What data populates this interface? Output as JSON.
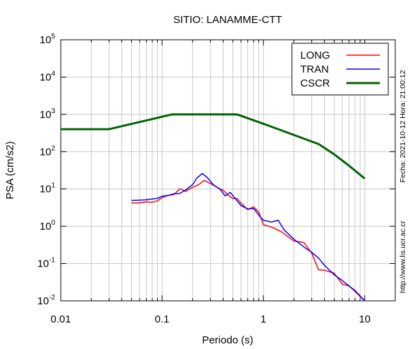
{
  "chart_data": {
    "type": "line",
    "title": "SITIO: LANAMME-CTT",
    "xlabel": "Periodo (s)",
    "ylabel": "PSA (cm/s2)",
    "x_scale": "log",
    "y_scale": "log",
    "xlim": [
      0.01,
      20
    ],
    "ylim": [
      0.01,
      100000
    ],
    "x_ticks": [
      {
        "value": 0.01,
        "label": "0.01"
      },
      {
        "value": 0.1,
        "label": "0.1"
      },
      {
        "value": 1,
        "label": "1"
      },
      {
        "value": 10,
        "label": "10"
      }
    ],
    "y_ticks": [
      {
        "value": 0.01,
        "base": "10",
        "exp": "-2"
      },
      {
        "value": 0.1,
        "base": "10",
        "exp": "-1"
      },
      {
        "value": 1,
        "base": "10",
        "exp": "0"
      },
      {
        "value": 10,
        "base": "10",
        "exp": "1"
      },
      {
        "value": 100,
        "base": "10",
        "exp": "2"
      },
      {
        "value": 1000,
        "base": "10",
        "exp": "3"
      },
      {
        "value": 10000,
        "base": "10",
        "exp": "4"
      },
      {
        "value": 100000,
        "base": "10",
        "exp": "5"
      }
    ],
    "grid": true,
    "legend_position": "top-right",
    "series": [
      {
        "name": "LONG",
        "color": "#ff0000",
        "width": 1.5,
        "points": [
          [
            0.05,
            4.2
          ],
          [
            0.06,
            4.2
          ],
          [
            0.07,
            4.5
          ],
          [
            0.08,
            4.4
          ],
          [
            0.09,
            4.8
          ],
          [
            0.1,
            5.8
          ],
          [
            0.115,
            6.8
          ],
          [
            0.13,
            7.0
          ],
          [
            0.15,
            10.2
          ],
          [
            0.17,
            8.6
          ],
          [
            0.2,
            11.0
          ],
          [
            0.23,
            13.0
          ],
          [
            0.26,
            17.0
          ],
          [
            0.3,
            14.0
          ],
          [
            0.35,
            11.0
          ],
          [
            0.4,
            9.2
          ],
          [
            0.45,
            6.8
          ],
          [
            0.5,
            5.5
          ],
          [
            0.55,
            5.6
          ],
          [
            0.6,
            4.2
          ],
          [
            0.7,
            2.8
          ],
          [
            0.8,
            3.3
          ],
          [
            0.9,
            2.4
          ],
          [
            1.0,
            1.1
          ],
          [
            1.2,
            0.95
          ],
          [
            1.5,
            0.72
          ],
          [
            2.0,
            0.4
          ],
          [
            2.5,
            0.37
          ],
          [
            3.0,
            0.19
          ],
          [
            3.5,
            0.068
          ],
          [
            4.0,
            0.066
          ],
          [
            5.0,
            0.055
          ],
          [
            6.0,
            0.028
          ],
          [
            7.0,
            0.025
          ],
          [
            8.0,
            0.018
          ],
          [
            9.0,
            0.013
          ],
          [
            10.0,
            0.01
          ]
        ]
      },
      {
        "name": "TRAN",
        "color": "#0000ff",
        "width": 1.5,
        "points": [
          [
            0.05,
            4.9
          ],
          [
            0.06,
            5.0
          ],
          [
            0.07,
            5.1
          ],
          [
            0.08,
            5.4
          ],
          [
            0.09,
            5.6
          ],
          [
            0.1,
            6.4
          ],
          [
            0.115,
            6.7
          ],
          [
            0.13,
            7.4
          ],
          [
            0.15,
            7.6
          ],
          [
            0.17,
            9.3
          ],
          [
            0.2,
            13.0
          ],
          [
            0.22,
            19.5
          ],
          [
            0.25,
            26.0
          ],
          [
            0.28,
            20.0
          ],
          [
            0.32,
            13.0
          ],
          [
            0.37,
            10.0
          ],
          [
            0.42,
            6.5
          ],
          [
            0.47,
            8.1
          ],
          [
            0.52,
            5.8
          ],
          [
            0.6,
            3.6
          ],
          [
            0.7,
            2.9
          ],
          [
            0.8,
            3.0
          ],
          [
            0.9,
            2.0
          ],
          [
            1.0,
            1.45
          ],
          [
            1.2,
            1.3
          ],
          [
            1.4,
            1.45
          ],
          [
            1.6,
            0.8
          ],
          [
            2.0,
            0.45
          ],
          [
            2.5,
            0.28
          ],
          [
            3.0,
            0.2
          ],
          [
            3.5,
            0.14
          ],
          [
            4.0,
            0.09
          ],
          [
            5.0,
            0.05
          ],
          [
            6.0,
            0.035
          ],
          [
            7.0,
            0.025
          ],
          [
            8.0,
            0.019
          ],
          [
            10.0,
            0.01
          ]
        ]
      },
      {
        "name": "CSCR",
        "color": "#006400",
        "width": 3,
        "points": [
          [
            0.01,
            400
          ],
          [
            0.03,
            400
          ],
          [
            0.125,
            1000
          ],
          [
            0.55,
            1000
          ],
          [
            1.0,
            560
          ],
          [
            2.0,
            280
          ],
          [
            3.5,
            160
          ],
          [
            5.0,
            85
          ],
          [
            7.0,
            42
          ],
          [
            10.0,
            19
          ]
        ]
      }
    ]
  },
  "side_text": {
    "timestamp": "Fecha: 2021-10-12 Hora: 21:00:12",
    "url": "http://www.lis.ucr.ac.cr"
  }
}
